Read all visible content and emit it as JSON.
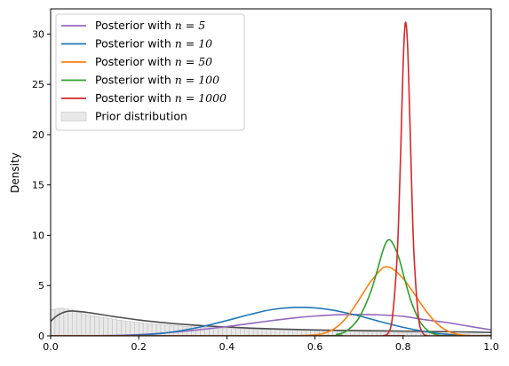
{
  "chart_data": {
    "type": "line",
    "title": "",
    "xlabel": "",
    "ylabel": "Density",
    "xlim": [
      0.0,
      1.0
    ],
    "ylim": [
      0,
      32.5
    ],
    "grid": false,
    "legend_position": "top-left",
    "x_ticks": [
      "0.0",
      "0.2",
      "0.4",
      "0.6",
      "0.8",
      "1.0"
    ],
    "y_ticks": [
      "0",
      "5",
      "10",
      "15",
      "20",
      "25",
      "30"
    ],
    "series": [
      {
        "name": "Posterior with n = 5",
        "legend_prefix": "Posterior with ",
        "legend_math": "n = 5",
        "color": "#9467bd",
        "kind": "line",
        "x": [
          0.0,
          0.05,
          0.1,
          0.15,
          0.2,
          0.25,
          0.3,
          0.35,
          0.4,
          0.45,
          0.5,
          0.55,
          0.6,
          0.65,
          0.7,
          0.75,
          0.8,
          0.85,
          0.9,
          0.95,
          1.0
        ],
        "y": [
          0.0,
          0.001,
          0.01,
          0.05,
          0.13,
          0.26,
          0.44,
          0.67,
          0.92,
          1.22,
          1.51,
          1.77,
          1.97,
          2.1,
          2.12,
          2.08,
          1.94,
          1.6,
          1.32,
          0.95,
          0.6
        ]
      },
      {
        "name": "Posterior with n = 10",
        "legend_prefix": "Posterior with ",
        "legend_math": "n = 10",
        "color": "#1f77b4",
        "kind": "line",
        "x": [
          0.0,
          0.1,
          0.15,
          0.2,
          0.25,
          0.3,
          0.35,
          0.4,
          0.45,
          0.5,
          0.55,
          0.6,
          0.65,
          0.7,
          0.75,
          0.8,
          0.85,
          0.9,
          0.95,
          1.0
        ],
        "y": [
          0.0,
          0.003,
          0.02,
          0.08,
          0.24,
          0.55,
          0.98,
          1.52,
          2.1,
          2.6,
          2.82,
          2.78,
          2.48,
          1.98,
          1.4,
          0.85,
          0.43,
          0.15,
          0.03,
          0.0
        ]
      },
      {
        "name": "Posterior with n = 50",
        "legend_prefix": "Posterior with ",
        "legend_math": "n = 50",
        "color": "#ff7f0e",
        "kind": "line",
        "x": [
          0.0,
          0.5,
          0.55,
          0.6,
          0.625,
          0.65,
          0.675,
          0.7,
          0.725,
          0.75,
          0.76,
          0.775,
          0.8,
          0.825,
          0.85,
          0.875,
          0.9,
          0.925,
          0.95,
          1.0
        ],
        "y": [
          0.0,
          0.0,
          0.01,
          0.1,
          0.32,
          0.9,
          2.0,
          3.6,
          5.3,
          6.6,
          6.85,
          6.7,
          5.7,
          4.2,
          2.6,
          1.3,
          0.5,
          0.15,
          0.03,
          0.0
        ]
      },
      {
        "name": "Posterior with n = 100",
        "legend_prefix": "Posterior with ",
        "legend_math": "n = 100",
        "color": "#2ca02c",
        "kind": "line",
        "x": [
          0.0,
          0.6,
          0.65,
          0.675,
          0.7,
          0.725,
          0.74,
          0.755,
          0.765,
          0.775,
          0.79,
          0.805,
          0.82,
          0.84,
          0.86,
          0.88,
          0.9,
          1.0
        ],
        "y": [
          0.0,
          0.0,
          0.15,
          0.6,
          1.8,
          4.2,
          6.3,
          8.6,
          9.5,
          9.3,
          7.8,
          5.4,
          3.2,
          1.3,
          0.4,
          0.08,
          0.01,
          0.0
        ]
      },
      {
        "name": "Posterior with n = 1000",
        "legend_prefix": "Posterior with ",
        "legend_math": "n = 1000",
        "color": "#d62728",
        "kind": "line",
        "x": [
          0.0,
          0.745,
          0.755,
          0.765,
          0.775,
          0.785,
          0.79,
          0.795,
          0.8,
          0.805,
          0.81,
          0.815,
          0.82,
          0.825,
          0.835,
          0.845,
          0.855,
          0.865,
          1.0
        ],
        "y": [
          0.0,
          0.0,
          0.02,
          0.2,
          1.6,
          6.8,
          11.8,
          19.0,
          27.0,
          31.1,
          29.0,
          22.0,
          14.0,
          7.8,
          1.8,
          0.25,
          0.02,
          0.0,
          0.0
        ]
      },
      {
        "name": "Prior distribution",
        "legend_prefix": "Prior distribution",
        "legend_math": "",
        "color": "#e8e8e8",
        "edge_color": "#bbbbbb",
        "kind": "histogram",
        "bin_width": 0.01,
        "bins_x": [
          0.0,
          0.01,
          0.02,
          0.03,
          0.04,
          0.05,
          0.06,
          0.07,
          0.08,
          0.09,
          0.1,
          0.11,
          0.12,
          0.13,
          0.14,
          0.15,
          0.16,
          0.17,
          0.18,
          0.19,
          0.2,
          0.21,
          0.22,
          0.23,
          0.24,
          0.25,
          0.26,
          0.27,
          0.28,
          0.29,
          0.3,
          0.31,
          0.32,
          0.33,
          0.34,
          0.35,
          0.36,
          0.37,
          0.38,
          0.39,
          0.4,
          0.41,
          0.42,
          0.43,
          0.44,
          0.45,
          0.46,
          0.47,
          0.48,
          0.49,
          0.5,
          0.51,
          0.52,
          0.53,
          0.54,
          0.55,
          0.56,
          0.57,
          0.58,
          0.59,
          0.6,
          0.61,
          0.62,
          0.63,
          0.64,
          0.65,
          0.66,
          0.67,
          0.68,
          0.69,
          0.7,
          0.71,
          0.72,
          0.73,
          0.74,
          0.75,
          0.76,
          0.77,
          0.78,
          0.79,
          0.8,
          0.81,
          0.82,
          0.83,
          0.84,
          0.85,
          0.86,
          0.87,
          0.88,
          0.89,
          0.9,
          0.91,
          0.92,
          0.93,
          0.94,
          0.95,
          0.96,
          0.97,
          0.98,
          0.99
        ],
        "heights": [
          2.6,
          2.7,
          2.75,
          2.7,
          2.6,
          2.4,
          2.3,
          2.2,
          2.1,
          2.0,
          1.92,
          1.85,
          1.78,
          1.7,
          1.63,
          1.57,
          1.5,
          1.45,
          1.4,
          1.35,
          1.3,
          1.26,
          1.22,
          1.18,
          1.14,
          1.1,
          1.07,
          1.04,
          1.01,
          0.98,
          0.95,
          0.93,
          0.9,
          0.88,
          0.86,
          0.84,
          0.82,
          0.8,
          0.78,
          0.76,
          0.75,
          0.73,
          0.72,
          0.7,
          0.69,
          0.68,
          0.67,
          0.66,
          0.65,
          0.64,
          0.63,
          0.62,
          0.61,
          0.6,
          0.59,
          0.58,
          0.57,
          0.56,
          0.55,
          0.54,
          0.53,
          0.52,
          0.51,
          0.5,
          0.49,
          0.48,
          0.47,
          0.46,
          0.45,
          0.44,
          0.43,
          0.42,
          0.41,
          0.4,
          0.39,
          0.38,
          0.37,
          0.36,
          0.35,
          0.34,
          0.33,
          0.32,
          0.31,
          0.3,
          0.3,
          0.29,
          0.28,
          0.27,
          0.26,
          0.25,
          0.24,
          0.23,
          0.22,
          0.21,
          0.2,
          0.19,
          0.18,
          0.17,
          0.16,
          0.15
        ]
      },
      {
        "name": "Prior density curve",
        "color": "#4d4d4d",
        "kind": "line",
        "in_legend": false,
        "x": [
          0.0,
          0.01,
          0.02,
          0.03,
          0.04,
          0.05,
          0.06,
          0.08,
          0.1,
          0.12,
          0.15,
          0.2,
          0.25,
          0.3,
          0.35,
          0.4,
          0.45,
          0.5,
          0.55,
          0.6,
          0.65,
          0.7,
          0.75,
          0.8,
          0.85,
          0.9,
          0.95,
          1.0
        ],
        "y": [
          1.45,
          1.85,
          2.15,
          2.35,
          2.45,
          2.47,
          2.44,
          2.35,
          2.22,
          2.08,
          1.88,
          1.58,
          1.34,
          1.15,
          1.0,
          0.88,
          0.78,
          0.7,
          0.64,
          0.59,
          0.55,
          0.52,
          0.5,
          0.47,
          0.44,
          0.41,
          0.38,
          0.34
        ]
      }
    ]
  }
}
